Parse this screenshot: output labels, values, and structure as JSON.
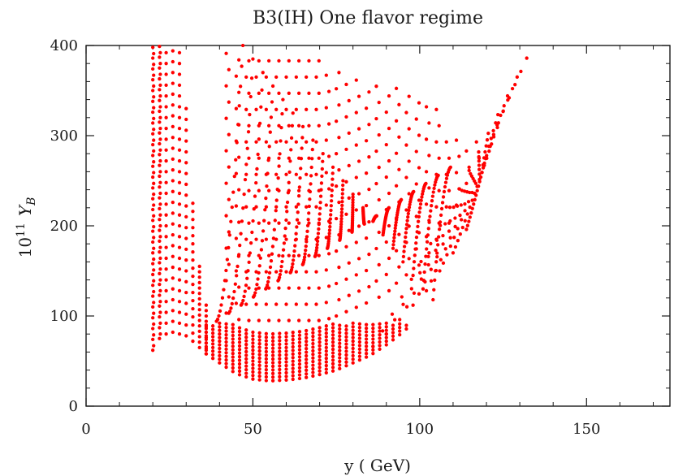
{
  "chart_data": {
    "type": "scatter",
    "title": "B3(IH) One flavor regime",
    "xlabel": "y ( GeV)",
    "ylabel_prefix": "10",
    "ylabel_exponent": "11",
    "ylabel_symbol": "Y",
    "ylabel_subscript": "B",
    "xlim": [
      0,
      175
    ],
    "ylim": [
      0,
      400
    ],
    "x_ticks": [
      0,
      50,
      100,
      150
    ],
    "y_ticks": [
      0,
      100,
      200,
      300,
      400
    ],
    "x_tick_labels": [
      "0",
      "50",
      "100",
      "150"
    ],
    "y_tick_labels": [
      "0",
      "100",
      "200",
      "300",
      "400"
    ],
    "grid": false,
    "legend": "none",
    "marker_color": "#ff0000",
    "point_count": "about 1500",
    "series": [
      {
        "description": "dense scatter of points; lower envelope minimum near y=55 GeV at about 28, rising to about 400 near y=130 GeV; dense vertical columns between y=20 and y=40 GeV",
        "lower_envelope": {
          "x": [
            20,
            22,
            25,
            28,
            30,
            33,
            36,
            40,
            45,
            50,
            55,
            60,
            65,
            70,
            75,
            80,
            85,
            90,
            95,
            100,
            105,
            110,
            115,
            120,
            125,
            130,
            134
          ],
          "y": [
            62,
            75,
            82,
            80,
            78,
            70,
            58,
            48,
            36,
            30,
            28,
            29,
            31,
            35,
            40,
            48,
            56,
            68,
            82,
            100,
            125,
            155,
            195,
            245,
            300,
            360,
            400
          ]
        },
        "columns": [
          {
            "x": 20,
            "y_range": [
              62,
              400
            ]
          },
          {
            "x": 22,
            "y_range": [
              75,
              400
            ]
          },
          {
            "x": 24,
            "y_range": [
              80,
              400
            ]
          },
          {
            "x": 26,
            "y_range": [
              82,
              400
            ]
          },
          {
            "x": 28,
            "y_range": [
              80,
              400
            ]
          },
          {
            "x": 30,
            "y_range": [
              78,
              335
            ]
          },
          {
            "x": 32,
            "y_range": [
              72,
              230
            ]
          },
          {
            "x": 34,
            "y_range": [
              65,
              160
            ]
          },
          {
            "x": 36,
            "y_range": [
              58,
              115
            ]
          }
        ]
      }
    ]
  }
}
